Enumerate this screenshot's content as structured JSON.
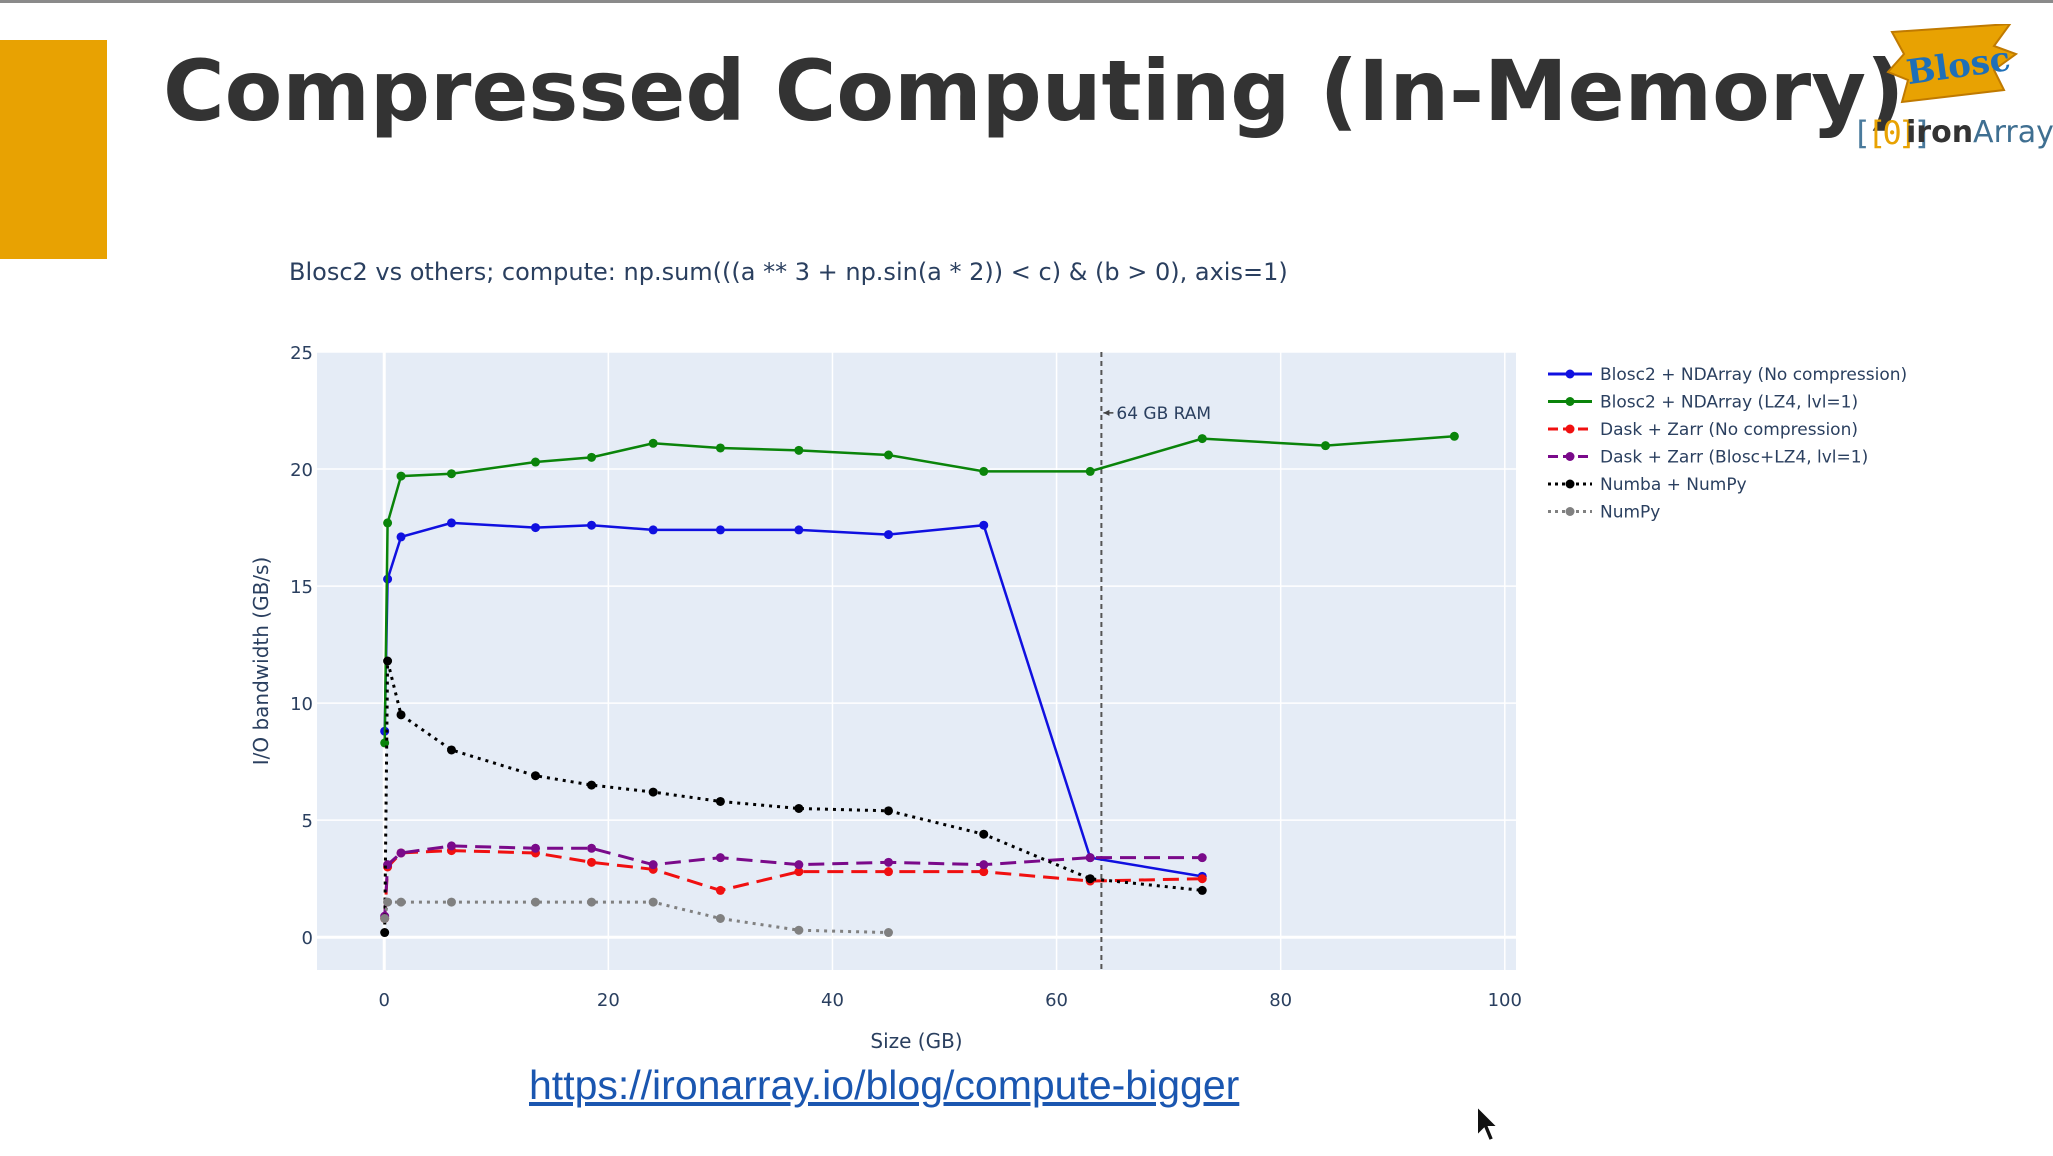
{
  "slide": {
    "title": "Compressed Computing (In-Memory)",
    "link_text": "https://ironarray.io/blog/compute-bigger",
    "accent_color": "#e8a202",
    "logos": {
      "blosc": "Blosc",
      "ironarray_prefix": "iron",
      "ironarray_suffix": "Array"
    }
  },
  "chart_data": {
    "type": "line",
    "title": "Blosc2 vs others; compute: np.sum(((a ** 3 + np.sin(a * 2)) < c) & (b > 0), axis=1)",
    "xlabel": "Size (GB)",
    "ylabel": "I/O bandwidth (GB/s)",
    "xlim": [
      -6,
      101
    ],
    "ylim": [
      -1.4,
      25
    ],
    "xticks": [
      0,
      20,
      40,
      60,
      80,
      100
    ],
    "yticks": [
      0,
      5,
      10,
      15,
      20,
      25
    ],
    "grid": true,
    "legend_position": "right",
    "annotation": {
      "x": 64,
      "y": 22.4,
      "text": "64 GB RAM",
      "line": "vertical-dashed"
    },
    "series": [
      {
        "name": "Blosc2 + NDArray (No compression)",
        "color": "#1010e0",
        "dash": "solid",
        "x": [
          0.04,
          0.3,
          1.5,
          6,
          13.5,
          18.5,
          24,
          30,
          37,
          45,
          53.5,
          63,
          73
        ],
        "y": [
          8.8,
          15.3,
          17.1,
          17.7,
          17.5,
          17.6,
          17.4,
          17.4,
          17.4,
          17.2,
          17.6,
          3.4,
          2.6
        ]
      },
      {
        "name": "Blosc2 + NDArray (LZ4, lvl=1)",
        "color": "#0a840a",
        "dash": "solid",
        "x": [
          0.04,
          0.3,
          1.5,
          6,
          13.5,
          18.5,
          24,
          30,
          37,
          45,
          53.5,
          63,
          73,
          84,
          95.5
        ],
        "y": [
          8.3,
          17.7,
          19.7,
          19.8,
          20.3,
          20.5,
          21.1,
          20.9,
          20.8,
          20.6,
          19.9,
          19.9,
          21.3,
          21.0,
          21.4
        ]
      },
      {
        "name": "Dask + Zarr (No compression)",
        "color": "#f01010",
        "dash": "dash",
        "x": [
          0.04,
          0.3,
          1.5,
          6,
          13.5,
          18.5,
          24,
          30,
          37,
          45,
          53.5,
          63,
          73
        ],
        "y": [
          0.8,
          3.0,
          3.6,
          3.7,
          3.6,
          3.2,
          2.9,
          2.0,
          2.8,
          2.8,
          2.8,
          2.4,
          2.5
        ]
      },
      {
        "name": "Dask + Zarr (Blosc+LZ4, lvl=1)",
        "color": "#7a0a8a",
        "dash": "dash",
        "x": [
          0.04,
          0.3,
          1.5,
          6,
          13.5,
          18.5,
          24,
          30,
          37,
          45,
          53.5,
          63,
          73
        ],
        "y": [
          0.9,
          3.1,
          3.6,
          3.9,
          3.8,
          3.8,
          3.1,
          3.4,
          3.1,
          3.2,
          3.1,
          3.4,
          3.4
        ]
      },
      {
        "name": "Numba + NumPy",
        "color": "#000000",
        "dash": "dot",
        "x": [
          0.04,
          0.3,
          1.5,
          6,
          13.5,
          18.5,
          24,
          30,
          37,
          45,
          53.5,
          63,
          73
        ],
        "y": [
          0.2,
          11.8,
          9.5,
          8.0,
          6.9,
          6.5,
          6.2,
          5.8,
          5.5,
          5.4,
          4.4,
          2.5,
          2.0
        ]
      },
      {
        "name": "NumPy",
        "color": "#808080",
        "dash": "dot",
        "x": [
          0.04,
          0.3,
          1.5,
          6,
          13.5,
          18.5,
          24,
          30,
          37,
          45
        ],
        "y": [
          0.8,
          1.5,
          1.5,
          1.5,
          1.5,
          1.5,
          1.5,
          0.8,
          0.3,
          0.2
        ]
      }
    ]
  }
}
